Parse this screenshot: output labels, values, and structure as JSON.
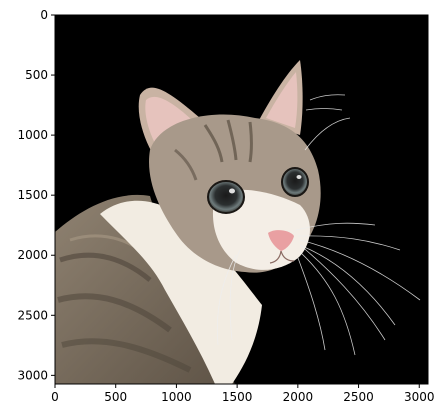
{
  "image": {
    "subject_icon": "cat-photo",
    "background_color": "#000000",
    "extent": {
      "width": 3072,
      "height": 3072
    },
    "axis_color": "#000000"
  },
  "axes": {
    "x_ticks": [
      {
        "value": 0,
        "label": "0"
      },
      {
        "value": 500,
        "label": "500"
      },
      {
        "value": 1000,
        "label": "1000"
      },
      {
        "value": 1500,
        "label": "1500"
      },
      {
        "value": 2000,
        "label": "2000"
      },
      {
        "value": 2500,
        "label": "2500"
      },
      {
        "value": 3000,
        "label": "3000"
      }
    ],
    "y_ticks": [
      {
        "value": 0,
        "label": "0"
      },
      {
        "value": 500,
        "label": "500"
      },
      {
        "value": 1000,
        "label": "1000"
      },
      {
        "value": 1500,
        "label": "1500"
      },
      {
        "value": 2000,
        "label": "2000"
      },
      {
        "value": 2500,
        "label": "2500"
      },
      {
        "value": 3000,
        "label": "3000"
      }
    ]
  }
}
